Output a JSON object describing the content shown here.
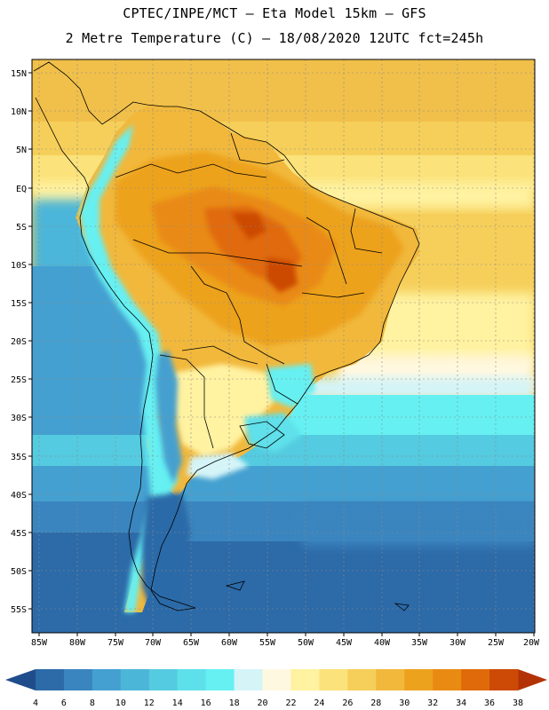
{
  "header": {
    "line1": "CPTEC/INPE/MCT –  Eta Model 15km – GFS",
    "line2": "2 Metre Temperature (C) – 18/08/2020 12UTC fct=245h"
  },
  "axes": {
    "latitudes": [
      "15N",
      "10N",
      "5N",
      "EQ",
      "5S",
      "10S",
      "15S",
      "20S",
      "25S",
      "30S",
      "35S",
      "40S",
      "45S",
      "50S",
      "55S"
    ],
    "longitudes": [
      "85W",
      "80W",
      "75W",
      "70W",
      "65W",
      "60W",
      "55W",
      "50W",
      "45W",
      "40W",
      "35W",
      "30W",
      "25W",
      "20W"
    ]
  },
  "colorbar": {
    "labels": [
      "4",
      "6",
      "8",
      "10",
      "12",
      "14",
      "16",
      "18",
      "20",
      "22",
      "24",
      "26",
      "28",
      "30",
      "32",
      "34",
      "36",
      "38"
    ],
    "colors": [
      "#1f4d8c",
      "#2c6aa8",
      "#3a85bf",
      "#44a0d0",
      "#4cb6d9",
      "#54cbe0",
      "#5ee0ea",
      "#66f0f2",
      "#d4f4f8",
      "#fff8e0",
      "#fff2a0",
      "#fbe27a",
      "#f6cf5a",
      "#f1b83c",
      "#eda21e",
      "#e98a12",
      "#e06a0a",
      "#cc4a06",
      "#b23206"
    ]
  }
}
